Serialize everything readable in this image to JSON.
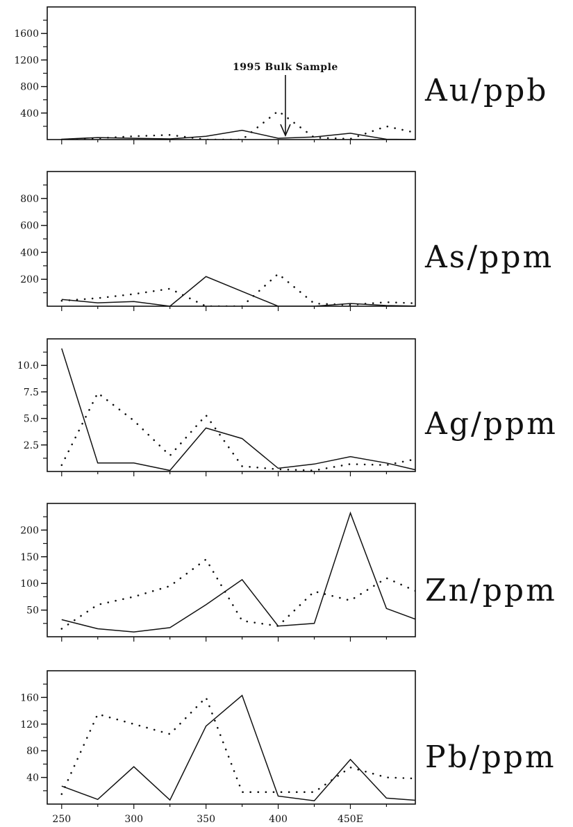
{
  "chart_data": [
    {
      "type": "line",
      "ylabel": "Au/ppb",
      "xlim": [
        240,
        495
      ],
      "ylim": [
        0,
        2000
      ],
      "yticks": [
        400,
        800,
        1200,
        1600
      ],
      "ytick_labels": [
        "400",
        "800",
        "1200",
        "1600"
      ],
      "series": [
        {
          "style": "solid",
          "x": [
            250,
            275,
            300,
            325,
            350,
            375,
            400,
            425,
            450,
            475,
            500
          ],
          "y": [
            5,
            30,
            20,
            10,
            50,
            140,
            20,
            40,
            95,
            5,
            0
          ]
        },
        {
          "style": "dotted",
          "x": [
            250,
            275,
            300,
            325,
            350,
            375,
            400,
            425,
            450,
            475,
            500
          ],
          "y": [
            0,
            20,
            50,
            70,
            0,
            0,
            430,
            30,
            10,
            200,
            80
          ]
        }
      ],
      "annotation": {
        "text": "1995 Bulk Sample",
        "x": 405,
        "y": 20
      }
    },
    {
      "type": "line",
      "ylabel": "As/ppm",
      "xlim": [
        240,
        495
      ],
      "ylim": [
        0,
        1000
      ],
      "yticks": [
        200,
        400,
        600,
        800
      ],
      "ytick_labels": [
        "200",
        "400",
        "600",
        "800"
      ],
      "series": [
        {
          "style": "solid",
          "x": [
            250,
            275,
            300,
            325,
            350,
            375,
            400,
            425,
            450,
            475,
            500
          ],
          "y": [
            50,
            25,
            35,
            0,
            220,
            110,
            0,
            0,
            20,
            5,
            0
          ]
        },
        {
          "style": "dotted",
          "x": [
            250,
            275,
            300,
            325,
            350,
            375,
            400,
            425,
            450,
            475,
            500
          ],
          "y": [
            40,
            60,
            90,
            130,
            0,
            0,
            240,
            20,
            10,
            30,
            20
          ]
        }
      ]
    },
    {
      "type": "line",
      "ylabel": "Ag/ppm",
      "xlim": [
        240,
        495
      ],
      "ylim": [
        0,
        12.5
      ],
      "yticks": [
        2.5,
        5.0,
        7.5,
        10.0
      ],
      "ytick_labels": [
        "2.5",
        "5.0",
        "7.5",
        "10.0"
      ],
      "series": [
        {
          "style": "solid",
          "x": [
            250,
            275,
            300,
            325,
            350,
            375,
            400,
            425,
            450,
            475,
            500
          ],
          "y": [
            11.6,
            0.8,
            0.8,
            0.1,
            4.1,
            3.1,
            0.3,
            0.7,
            1.4,
            0.8,
            0
          ]
        },
        {
          "style": "dotted",
          "x": [
            250,
            275,
            300,
            325,
            350,
            375,
            400,
            425,
            450,
            475,
            500
          ],
          "y": [
            0.6,
            7.4,
            4.8,
            1.5,
            5.3,
            0.5,
            0.2,
            0.1,
            0.7,
            0.6,
            1.3
          ]
        }
      ]
    },
    {
      "type": "line",
      "ylabel": "Zn/ppm",
      "xlim": [
        240,
        495
      ],
      "ylim": [
        0,
        250
      ],
      "yticks": [
        50,
        100,
        150,
        200
      ],
      "ytick_labels": [
        "50",
        "100",
        "150",
        "200"
      ],
      "series": [
        {
          "style": "solid",
          "x": [
            250,
            275,
            300,
            325,
            350,
            375,
            400,
            425,
            450,
            475,
            500
          ],
          "y": [
            32,
            15,
            9,
            17,
            60,
            107,
            20,
            25,
            232,
            53,
            28
          ]
        },
        {
          "style": "dotted",
          "x": [
            250,
            275,
            300,
            325,
            350,
            375,
            400,
            425,
            450,
            475,
            500
          ],
          "y": [
            15,
            60,
            75,
            95,
            145,
            30,
            20,
            85,
            68,
            110,
            80
          ]
        }
      ]
    },
    {
      "type": "line",
      "ylabel": "Pb/ppm",
      "xlim": [
        240,
        495
      ],
      "ylim": [
        0,
        200
      ],
      "yticks": [
        40,
        80,
        120,
        160
      ],
      "ytick_labels": [
        "40",
        "80",
        "120",
        "160"
      ],
      "xticks": [
        250,
        300,
        350,
        400,
        450
      ],
      "xtick_labels": [
        "250",
        "300",
        "350",
        "400",
        "450E"
      ],
      "series": [
        {
          "style": "solid",
          "x": [
            250,
            275,
            300,
            325,
            350,
            375,
            400,
            425,
            450,
            475,
            500
          ],
          "y": [
            27,
            7,
            56,
            6,
            117,
            163,
            12,
            5,
            67,
            9,
            5
          ]
        },
        {
          "style": "dotted",
          "x": [
            250,
            275,
            300,
            325,
            350,
            375,
            400,
            425,
            450,
            475,
            500
          ],
          "y": [
            15,
            135,
            120,
            105,
            160,
            18,
            18,
            18,
            55,
            40,
            38
          ]
        }
      ]
    }
  ]
}
